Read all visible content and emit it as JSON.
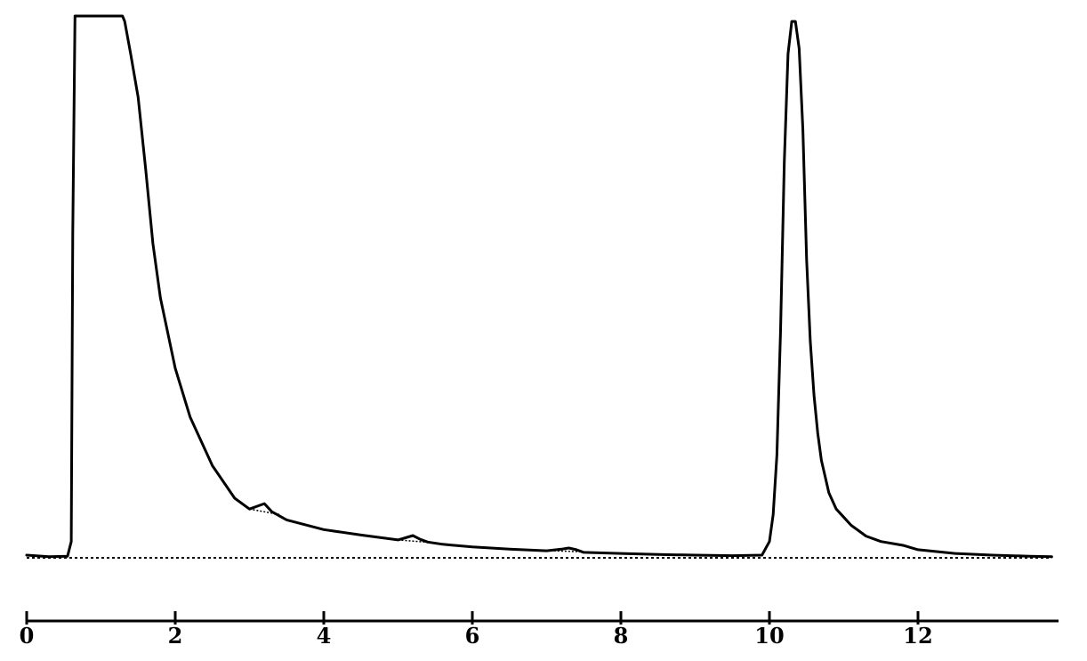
{
  "chart_data": {
    "type": "line",
    "title": "",
    "xlabel": "",
    "ylabel": "",
    "xlim": [
      0,
      13.8
    ],
    "ylim": [
      0,
      100
    ],
    "grid": false,
    "x_ticks": [
      0,
      2,
      4,
      6,
      8,
      10,
      12
    ],
    "x_tick_labels": [
      "0",
      "2",
      "4",
      "6",
      "8",
      "10",
      "12"
    ],
    "y_clipped_at": 100,
    "series": [
      {
        "x": [
          0,
          0.3,
          0.55,
          0.6,
          0.62,
          0.65,
          0.7,
          1.29,
          1.32,
          1.4,
          1.5,
          1.6,
          1.7,
          1.8,
          2.0,
          2.2,
          2.5,
          2.8,
          3.0,
          3.1,
          3.2,
          3.3,
          3.5,
          4.0,
          4.5,
          5.0,
          5.1,
          5.2,
          5.3,
          5.4,
          5.6,
          6.0,
          6.5,
          7.0,
          7.2,
          7.3,
          7.4,
          7.5,
          8.0,
          8.5,
          9.0,
          9.5,
          9.9,
          10.0,
          10.05,
          10.1,
          10.15,
          10.2,
          10.25,
          10.3,
          10.35,
          10.4,
          10.45,
          10.5,
          10.55,
          10.6,
          10.65,
          10.7,
          10.75,
          10.8,
          10.9,
          11.0,
          11.1,
          11.2,
          11.3,
          11.5,
          11.8,
          12.0,
          12.5,
          13.0,
          13.5,
          13.8
        ],
        "y": [
          0.5,
          0.2,
          0.3,
          3,
          60,
          100,
          100,
          100,
          99,
          93,
          85,
          72,
          58,
          48,
          35,
          26,
          17,
          11,
          9,
          9.5,
          10,
          8.5,
          7,
          5.2,
          4.2,
          3.3,
          3.7,
          4.1,
          3.4,
          2.9,
          2.5,
          2.0,
          1.6,
          1.3,
          1.6,
          1.8,
          1.5,
          1.0,
          0.8,
          0.6,
          0.5,
          0.4,
          0.5,
          3,
          8,
          19,
          42,
          73,
          93,
          99,
          99,
          94,
          79,
          55,
          40,
          30,
          23,
          18,
          15,
          12,
          9,
          7.5,
          6,
          5,
          4,
          3,
          2.3,
          1.5,
          0.8,
          0.5,
          0.3,
          0.2
        ]
      }
    ],
    "baselines": [
      {
        "x": [
          0,
          13.8
        ],
        "y": [
          0,
          0
        ]
      },
      {
        "x": [
          3.0,
          3.4
        ],
        "y": [
          9,
          8
        ]
      },
      {
        "x": [
          5.0,
          5.45
        ],
        "y": [
          3.3,
          2.8
        ]
      },
      {
        "x": [
          7.1,
          7.5
        ],
        "y": [
          1.3,
          1.1
        ]
      }
    ]
  }
}
